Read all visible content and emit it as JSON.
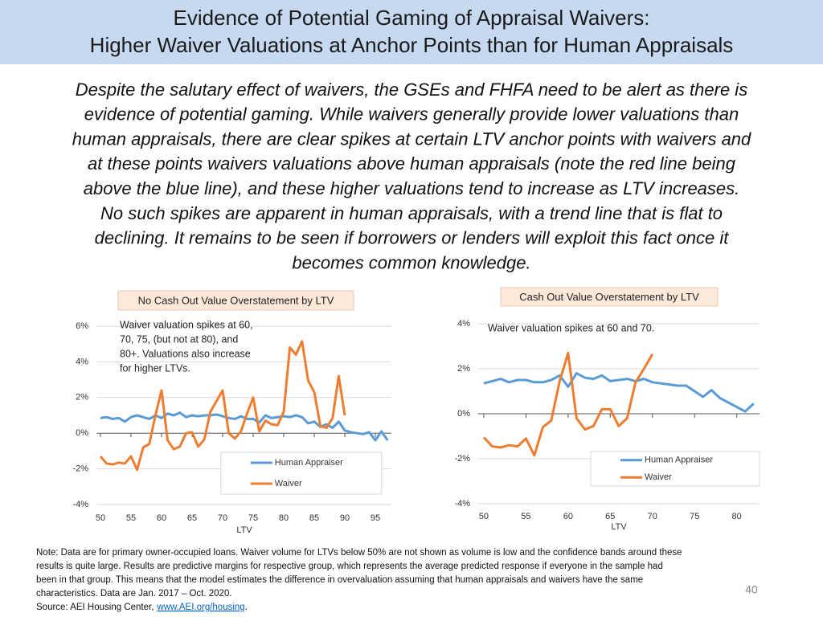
{
  "header": {
    "title_lines": [
      "Evidence of Potential Gaming of Appraisal Waivers:",
      "Higher Waiver Valuations at Anchor Points than for Human Appraisals"
    ]
  },
  "body": {
    "paragraph_lines": [
      "Despite the salutary effect of waivers, the GSEs and FHFA need to be alert as there is",
      "evidence of potential gaming. While waivers generally provide lower valuations than",
      "human appraisals, there are clear spikes at certain LTV anchor points with waivers and",
      "at these points waivers valuations above human appraisals (note the red line being",
      "above the blue line), and these higher valuations tend to increase as LTV increases.",
      "No such spikes are apparent in human appraisals, with a trend line that is flat to",
      "declining. It remains to be seen if borrowers or lenders will exploit this fact once it",
      "becomes common knowledge."
    ]
  },
  "chart_data": [
    {
      "type": "line",
      "title": "No Cash Out Value Overstatement by LTV",
      "annotation": [
        "Waiver valuation spikes at 60,",
        "70, 75, (but not at 80), and",
        "80+. Valuations also increase",
        "for higher LTVs."
      ],
      "x_label": "LTV",
      "x": [
        50,
        51,
        52,
        53,
        54,
        55,
        56,
        57,
        58,
        59,
        60,
        61,
        62,
        63,
        64,
        65,
        66,
        67,
        68,
        69,
        70,
        71,
        72,
        73,
        74,
        75,
        76,
        77,
        78,
        79,
        80,
        81,
        82,
        83,
        84,
        85,
        86,
        87,
        88,
        89,
        90,
        91,
        92,
        93,
        94,
        95,
        96,
        97
      ],
      "series": [
        {
          "name": "Human Appraiser",
          "color": "#5b9bd5",
          "values": [
            0.85,
            0.9,
            0.8,
            0.85,
            0.65,
            0.9,
            1.0,
            0.9,
            0.8,
            1.0,
            0.85,
            1.1,
            1.0,
            1.15,
            0.9,
            1.0,
            0.95,
            1.0,
            1.0,
            1.05,
            0.95,
            0.85,
            0.8,
            0.95,
            0.8,
            0.8,
            0.6,
            1.0,
            0.85,
            0.9,
            0.95,
            0.9,
            1.0,
            0.9,
            0.55,
            0.65,
            0.35,
            0.5,
            0.3,
            0.65,
            0.15,
            0.05,
            0.0,
            -0.05,
            0.05,
            -0.4,
            0.1,
            -0.4
          ]
        },
        {
          "name": "Waiver",
          "color": "#ed7d31",
          "values": [
            -1.3,
            -1.7,
            -1.75,
            -1.65,
            -1.7,
            -1.3,
            -2.05,
            -0.8,
            -0.6,
            1.0,
            2.4,
            -0.4,
            -0.9,
            -0.75,
            0.0,
            0.05,
            -0.75,
            -0.35,
            1.2,
            1.8,
            2.4,
            0.0,
            -0.3,
            0.1,
            1.1,
            2.0,
            0.1,
            0.7,
            0.5,
            0.45,
            1.2,
            4.8,
            4.4,
            5.15,
            2.95,
            2.3,
            0.4,
            0.3,
            0.85,
            3.2,
            1.0,
            null,
            null,
            null,
            null,
            null,
            null,
            null
          ]
        }
      ],
      "xlim": [
        49.4,
        97.6
      ],
      "xticks": [
        50,
        55,
        60,
        65,
        70,
        75,
        80,
        85,
        90,
        95
      ],
      "ylim": [
        -4,
        6
      ],
      "yticks": [
        {
          "value": -4,
          "label": "-4%"
        },
        {
          "value": -2,
          "label": "-2%"
        },
        {
          "value": 0,
          "label": "0%"
        },
        {
          "value": 2,
          "label": "2%"
        },
        {
          "value": 4,
          "label": "4%"
        },
        {
          "value": 6,
          "label": "6%"
        }
      ],
      "grid": true,
      "legend": "lower right"
    },
    {
      "type": "line",
      "title": "Cash Out Value Overstatement by LTV",
      "annotation": [
        "Waiver valuation spikes at 60 and 70."
      ],
      "x_label": "LTV",
      "x": [
        50,
        51,
        52,
        53,
        54,
        55,
        56,
        57,
        58,
        59,
        60,
        61,
        62,
        63,
        64,
        65,
        66,
        67,
        68,
        69,
        70,
        71,
        72,
        73,
        74,
        75,
        76,
        77,
        78,
        79,
        80,
        81,
        82
      ],
      "series": [
        {
          "name": "Human Appraiser",
          "color": "#5b9bd5",
          "values": [
            1.35,
            1.45,
            1.55,
            1.4,
            1.5,
            1.5,
            1.4,
            1.4,
            1.5,
            1.7,
            1.2,
            1.8,
            1.6,
            1.55,
            1.7,
            1.45,
            1.5,
            1.55,
            1.45,
            1.55,
            1.4,
            1.35,
            1.3,
            1.25,
            1.25,
            1.0,
            0.75,
            1.05,
            0.7,
            0.5,
            0.3,
            0.1,
            0.45
          ]
        },
        {
          "name": "Waiver",
          "color": "#ed7d31",
          "values": [
            -1.05,
            -1.45,
            -1.5,
            -1.4,
            -1.45,
            -1.1,
            -1.85,
            -0.6,
            -0.3,
            1.45,
            2.7,
            -0.2,
            -0.7,
            -0.55,
            0.2,
            0.2,
            -0.55,
            -0.2,
            1.4,
            2.0,
            2.65,
            null,
            null,
            null,
            null,
            null,
            null,
            null,
            null,
            null,
            null,
            null,
            null
          ]
        }
      ],
      "xlim": [
        49.3,
        82.7
      ],
      "xticks": [
        50,
        55,
        60,
        65,
        70,
        75,
        80
      ],
      "ylim": [
        -4,
        4
      ],
      "yticks": [
        {
          "value": -4,
          "label": "-4%"
        },
        {
          "value": -2,
          "label": "-2%"
        },
        {
          "value": 0,
          "label": "0%"
        },
        {
          "value": 2,
          "label": "2%"
        },
        {
          "value": 4,
          "label": "4%"
        }
      ],
      "grid": true,
      "legend": "lower right"
    }
  ],
  "note": {
    "lines": [
      "Note: Data are for primary owner-occupied loans. Waiver volume for LTVs below 50% are not shown as volume is low and the confidence bands around these",
      "results is quite large. Results are predictive margins for respective group, which represents the average predicted response if everyone in the sample had",
      "been in that group. This means that the model estimates the difference in overvaluation assuming that human appraisals and waivers have the same",
      "characteristics. Data are Jan. 2017 – Oct. 2020."
    ],
    "source": {
      "text": "Source: AEI Housing Center,",
      "link": "www.AEI.org/housing",
      "end": "."
    }
  },
  "page_number": "40"
}
